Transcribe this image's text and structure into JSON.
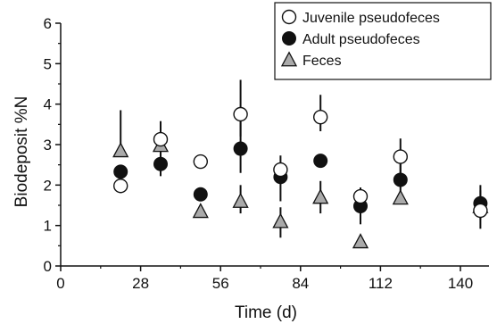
{
  "chart_data": {
    "type": "scatter",
    "xlabel": "Time (d)",
    "ylabel": "Biodeposit %N",
    "xlim": [
      0,
      150
    ],
    "ylim": [
      0,
      6
    ],
    "xticks": [
      0,
      28,
      56,
      84,
      112,
      140
    ],
    "yticks": [
      0,
      1,
      2,
      3,
      4,
      5,
      6
    ],
    "legend_position": "top-right",
    "grid": false,
    "series": [
      {
        "name": "Juvenile pseudofeces",
        "marker": "open-circle",
        "color": "#ffffff",
        "x": [
          21,
          35,
          49,
          63,
          77,
          91,
          105,
          119,
          147
        ],
        "y": [
          1.98,
          3.13,
          2.58,
          3.75,
          2.38,
          3.68,
          1.72,
          2.7,
          1.37
        ],
        "err_low": [
          0,
          0.35,
          0,
          0.55,
          0.2,
          0.35,
          0.22,
          0.45,
          0.45
        ],
        "err_high": [
          0,
          0.45,
          0,
          0.85,
          0.35,
          0.55,
          0.22,
          0.45,
          0.5
        ]
      },
      {
        "name": "Adult pseudofeces",
        "marker": "filled-circle",
        "color": "#111111",
        "x": [
          21,
          35,
          49,
          63,
          77,
          91,
          105,
          119,
          147
        ],
        "y": [
          2.33,
          2.52,
          1.77,
          2.9,
          2.2,
          2.6,
          1.48,
          2.13,
          1.55
        ],
        "err_low": [
          0,
          0.3,
          0,
          0.6,
          0.6,
          0,
          0.45,
          0.35,
          0.4
        ],
        "err_high": [
          0,
          0.35,
          0,
          0.9,
          0.35,
          0,
          0.45,
          0.4,
          0.45
        ]
      },
      {
        "name": "Feces",
        "marker": "gray-triangle",
        "color": "#aaaaaa",
        "x": [
          21,
          35,
          49,
          63,
          77,
          91,
          105,
          119,
          147
        ],
        "y": [
          2.85,
          2.98,
          1.35,
          1.6,
          1.1,
          1.7,
          0.6,
          1.68,
          1.47
        ],
        "err_low": [
          0,
          0,
          0,
          0.3,
          0.4,
          0.4,
          0,
          0,
          0
        ],
        "err_high": [
          1.0,
          0,
          0,
          0.4,
          0.35,
          0.4,
          0,
          0,
          0
        ]
      }
    ]
  }
}
